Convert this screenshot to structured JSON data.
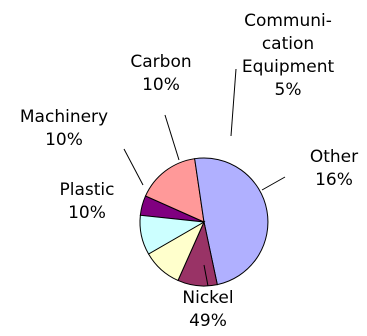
{
  "chart_data": {
    "type": "pie",
    "slices": [
      {
        "label_lines": [
          "Communi-",
          "cation",
          "Equipment"
        ],
        "value_label": "5%",
        "value": 5,
        "color": "#800080"
      },
      {
        "label_lines": [
          "Other"
        ],
        "value_label": "16%",
        "value": 16,
        "color": "#FF9999"
      },
      {
        "label_lines": [
          "Nickel"
        ],
        "value_label": "49%",
        "value": 49,
        "color": "#B0B0FF"
      },
      {
        "label_lines": [
          "Plastic"
        ],
        "value_label": "10%",
        "value": 10,
        "color": "#993366"
      },
      {
        "label_lines": [
          "Machinery"
        ],
        "value_label": "10%",
        "value": 10,
        "color": "#FFFFCC"
      },
      {
        "label_lines": [
          "Carbon"
        ],
        "value_label": "10%",
        "value": 10,
        "color": "#CCFFFF"
      }
    ]
  }
}
